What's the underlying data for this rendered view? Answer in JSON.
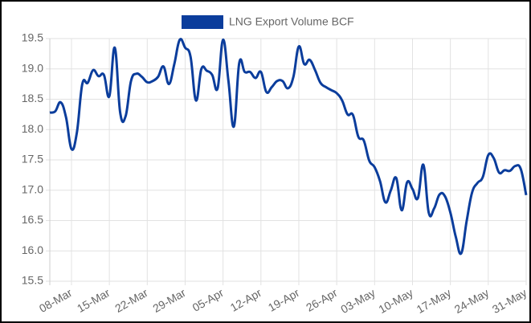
{
  "chart_data": {
    "type": "line",
    "legend": {
      "position": "top"
    },
    "categories": [
      null,
      null,
      null,
      null,
      "08-Mar",
      null,
      null,
      null,
      null,
      null,
      null,
      "15-Mar",
      null,
      null,
      null,
      null,
      null,
      null,
      "22-Mar",
      null,
      null,
      null,
      null,
      null,
      null,
      "29-Mar",
      null,
      null,
      null,
      null,
      null,
      null,
      "05-Apr",
      null,
      null,
      null,
      null,
      null,
      null,
      "12-Apr",
      null,
      null,
      null,
      null,
      null,
      null,
      "19-Apr",
      null,
      null,
      null,
      null,
      null,
      null,
      "26-Apr",
      null,
      null,
      null,
      null,
      null,
      null,
      "03-May",
      null,
      null,
      null,
      null,
      null,
      null,
      "10-May",
      null,
      null,
      null,
      null,
      null,
      null,
      "17-May",
      null,
      null,
      null,
      null,
      null,
      null,
      "24-May",
      null,
      null,
      null,
      null,
      null,
      null,
      "31-May"
    ],
    "series": [
      {
        "name": "LNG Export Volume BCF",
        "color": "#0b3d9c",
        "values": [
          18.28,
          18.3,
          18.45,
          18.2,
          17.68,
          17.95,
          18.75,
          18.77,
          18.98,
          18.88,
          18.9,
          18.55,
          19.35,
          18.28,
          18.22,
          18.8,
          18.92,
          18.87,
          18.78,
          18.8,
          18.87,
          19.04,
          18.75,
          19.08,
          19.48,
          19.35,
          19.2,
          18.48,
          19.0,
          18.97,
          18.9,
          18.68,
          19.48,
          18.8,
          18.05,
          19.1,
          18.95,
          18.95,
          18.85,
          18.95,
          18.62,
          18.7,
          18.8,
          18.8,
          18.68,
          18.87,
          19.37,
          19.08,
          19.15,
          18.98,
          18.77,
          18.7,
          18.65,
          18.6,
          18.48,
          18.25,
          18.24,
          17.88,
          17.82,
          17.49,
          17.38,
          17.15,
          16.8,
          17.0,
          17.2,
          16.67,
          17.13,
          17.02,
          16.87,
          17.42,
          16.63,
          16.7,
          16.93,
          16.9,
          16.63,
          16.23,
          15.96,
          16.49,
          16.96,
          17.12,
          17.22,
          17.58,
          17.53,
          17.29,
          17.33,
          17.32,
          17.4,
          17.35,
          16.92
        ]
      }
    ],
    "ylim": [
      15.5,
      19.5
    ],
    "yticks": [
      {
        "value": 15.5,
        "label": "15.5"
      },
      {
        "value": 16,
        "label": "16.0"
      },
      {
        "value": 16.5,
        "label": "16.5"
      },
      {
        "value": 17,
        "label": "17.0"
      },
      {
        "value": 17.5,
        "label": "17.5"
      },
      {
        "value": 18,
        "label": "18.0"
      },
      {
        "value": 18.5,
        "label": "18.5"
      },
      {
        "value": 19,
        "label": "19.0"
      },
      {
        "value": 19.5,
        "label": "19.5"
      }
    ],
    "grid": true
  }
}
